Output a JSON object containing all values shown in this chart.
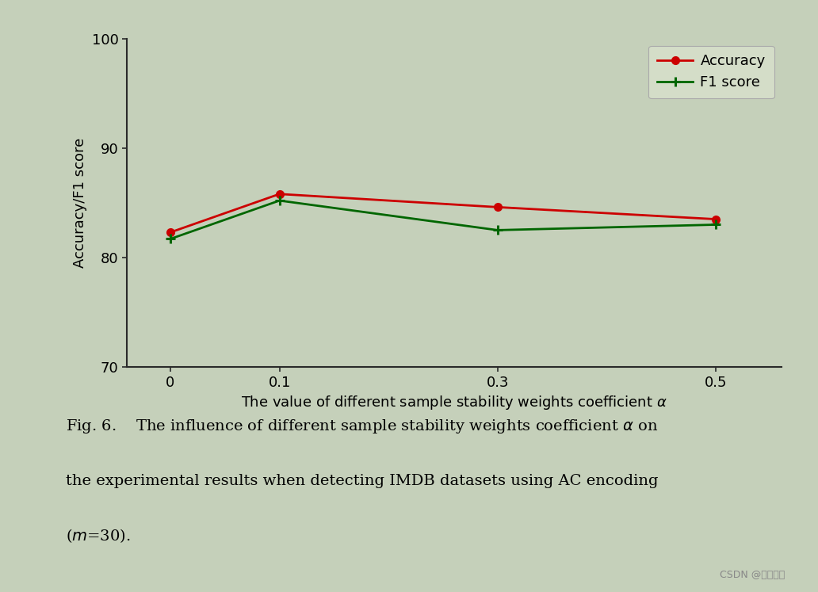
{
  "x_values": [
    0,
    0.1,
    0.3,
    0.5
  ],
  "x_labels": [
    "0",
    "0.1",
    "0.3",
    "0.5"
  ],
  "accuracy": [
    82.3,
    85.8,
    84.6,
    83.5
  ],
  "f1_score": [
    81.7,
    85.2,
    82.5,
    83.0
  ],
  "ylim": [
    70,
    100
  ],
  "yticks": [
    70,
    80,
    90,
    100
  ],
  "ylabel": "Accuracy/F1 score",
  "xlabel": "The value of different sample stability weights coefficient $\\alpha$",
  "accuracy_color": "#cc0000",
  "f1_color": "#006600",
  "background_color": "#c5d0ba",
  "legend_accuracy": "Accuracy",
  "legend_f1": "F1 score",
  "fig_width": 10.32,
  "fig_height": 7.47
}
